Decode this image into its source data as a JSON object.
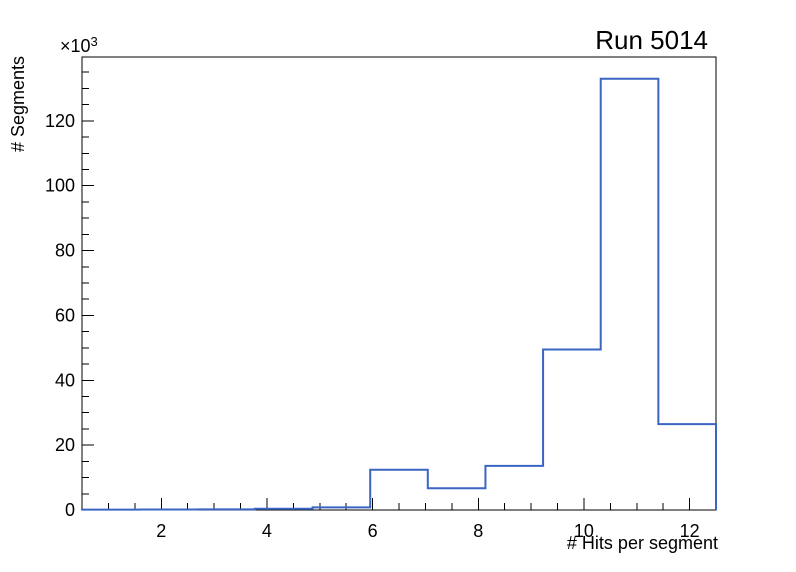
{
  "title": "Run 5014",
  "x_axis": {
    "title": "# Hits per segment",
    "min": 0.5,
    "max": 12.5,
    "major_tick_values": [
      2,
      4,
      6,
      8,
      10,
      12
    ],
    "tick_labels": [
      "2",
      "4",
      "6",
      "8",
      "10",
      "12"
    ],
    "minor_tick_step": 0.5
  },
  "y_axis": {
    "title": "# Segments",
    "scale_prefix": "×10",
    "scale_exponent": "3",
    "min": 0,
    "max": 139700,
    "major_tick_values": [
      0,
      20000,
      40000,
      60000,
      80000,
      100000,
      120000
    ],
    "tick_labels": [
      "0",
      "20",
      "40",
      "60",
      "80",
      "100",
      "120"
    ],
    "minor_tick_step": 5000
  },
  "chart_data": {
    "type": "bar",
    "style": "step-histogram-outline",
    "title": "Run 5014",
    "xlabel": "# Hits per segment",
    "ylabel": "# Segments",
    "y_scale_label": "×10³",
    "xlim": [
      0.5,
      12.5
    ],
    "ylim": [
      0,
      139700
    ],
    "grid": false,
    "legend": false,
    "n_bins": 11,
    "bin_edges": [
      0.5,
      1.591,
      2.682,
      3.773,
      4.864,
      5.955,
      7.045,
      8.136,
      9.227,
      10.318,
      11.409,
      12.5
    ],
    "counts": [
      100,
      150,
      200,
      400,
      800,
      12400,
      6700,
      13600,
      49500,
      133000,
      26500
    ]
  },
  "colors": {
    "histogram_line": "#3a65c2",
    "axis": "#000000",
    "text": "#000000",
    "background": "#ffffff"
  }
}
